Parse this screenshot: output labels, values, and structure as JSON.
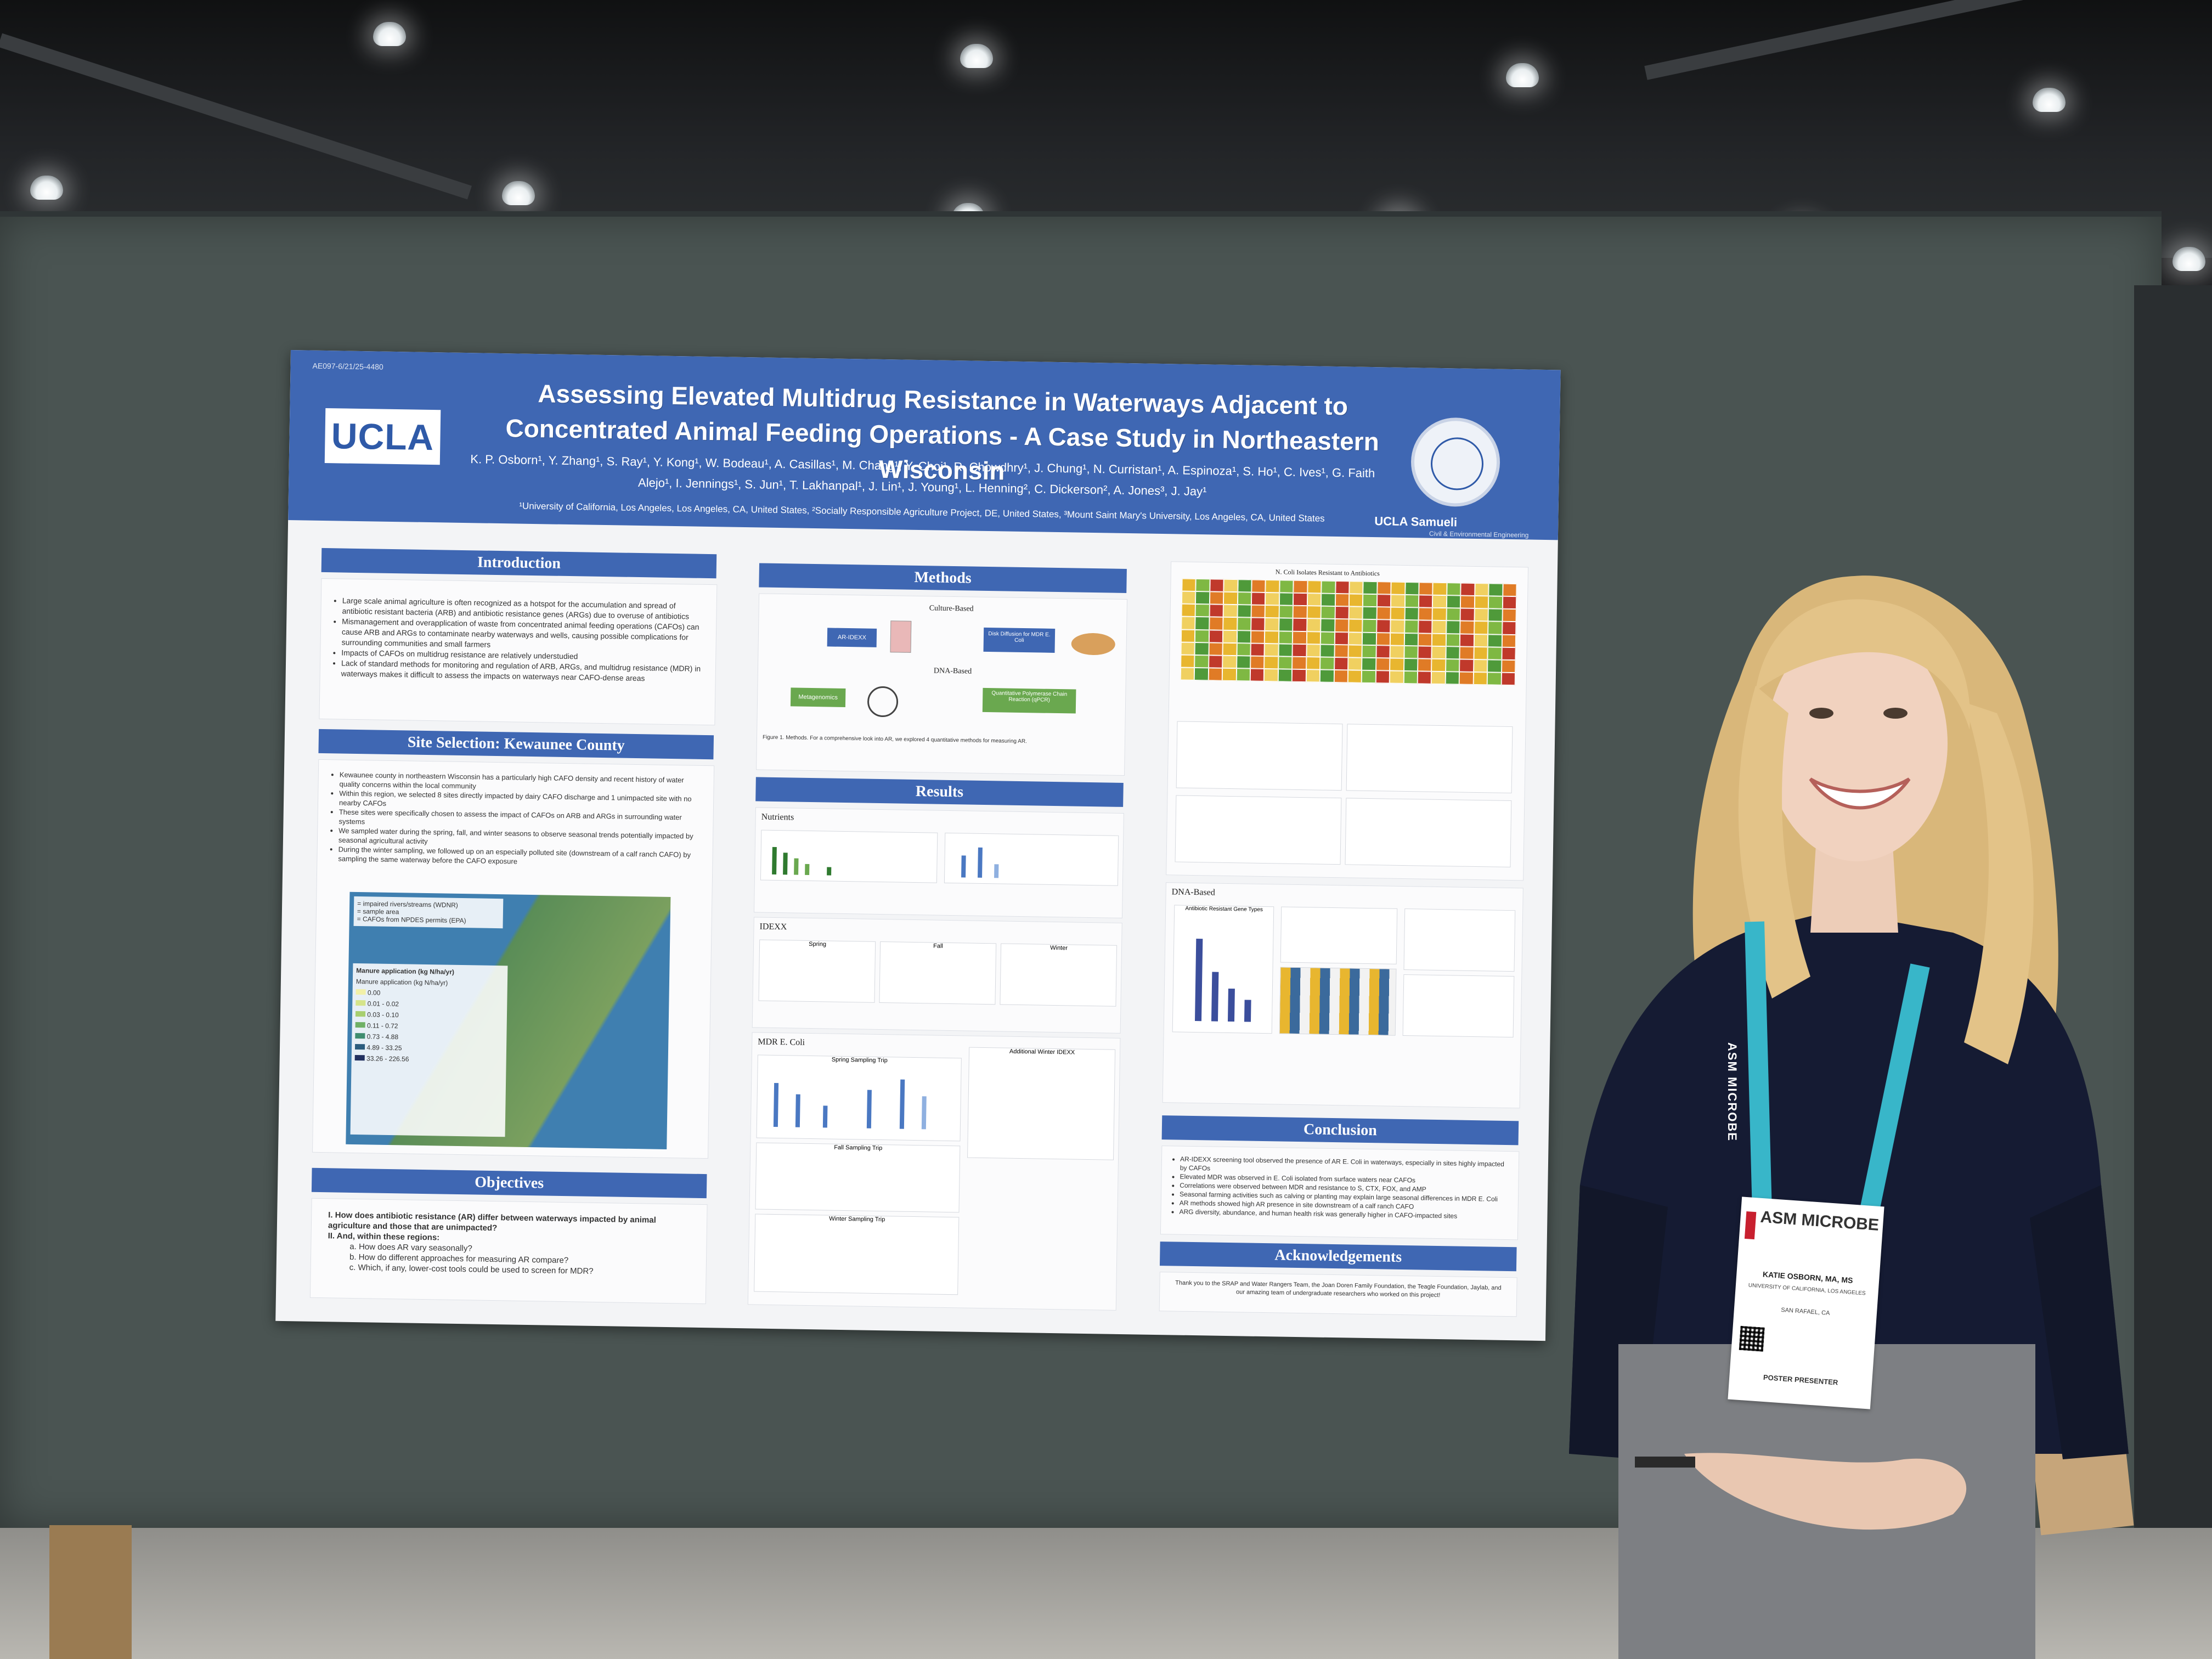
{
  "poster": {
    "id": "AE097-6/21/25-4480",
    "logo": "UCLA",
    "title": "Assessing Elevated Multidrug Resistance in Waterways Adjacent to Concentrated Animal Feeding Operations - A Case Study in Northeastern Wisconsin",
    "authors": "K. P. Osborn¹, Y. Zhang¹, S. Ray¹, Y. Kong¹, W. Bodeau¹, A. Casillas¹, M. Chang¹, Y. Choi¹, R. Chowdhry¹, J. Chung¹, N. Curristan¹, A. Espinoza¹, S. Ho¹, C. Ives¹, G. Faith Alejo¹, I. Jennings¹, S. Jun¹, T. Lakhanpal¹, J. Lin¹, J. Young¹, L. Henning², C. Dickerson², A. Jones³, J. Jay¹",
    "affiliations": "¹University of California, Los Angeles, Los Angeles, CA, United States, ²Socially Responsible Agriculture Project, DE, United States, ³Mount Saint Mary's University, Los Angeles, CA, United States",
    "dept_name": "UCLA Samueli",
    "dept_sub": "Civil & Environmental Engineering",
    "sections": {
      "introduction": {
        "heading": "Introduction",
        "bullets": [
          "Large scale animal agriculture is often recognized as a hotspot for the accumulation and spread of antibiotic resistant bacteria (ARB) and antibiotic resistance genes (ARGs) due to overuse of antibiotics",
          "Mismanagement and overapplication of waste from concentrated animal feeding operations (CAFOs) can cause ARB and ARGs to contaminate nearby waterways and wells, causing possible complications for surrounding communities and small farmers",
          "Impacts of CAFOs on multidrug resistance are relatively understudied",
          "Lack of standard methods for monitoring and regulation of ARB, ARGs, and multidrug resistance (MDR) in waterways makes it difficult to assess the impacts on waterways near CAFO-dense areas"
        ]
      },
      "site_selection": {
        "heading": "Site Selection: Kewaunee County",
        "bullets": [
          "Kewaunee county in northeastern Wisconsin has a particularly high CAFO density and recent history of water quality concerns within the local community",
          "Within this region, we selected 8 sites directly impacted by dairy CAFO discharge and 1 unimpacted site with no nearby CAFOs",
          "These sites were specifically chosen to assess the impact of CAFOs on ARB and ARGs in surrounding water systems",
          "We sampled water during the spring, fall, and winter seasons to observe seasonal trends potentially impacted by seasonal agricultural activity",
          "During the winter sampling, we followed up on an especially polluted site (downstream of a calf ranch CAFO) by sampling the same waterway before the CAFO exposure"
        ],
        "map_legend": [
          "= impaired rivers/streams (WDNR)",
          "= sample area",
          "= CAFOs from NPDES permits (EPA)"
        ],
        "manure_title": "Manure application (kg N/ha/yr)",
        "manure_sub": "Manure application (kg N/ha/yr)",
        "manure_bins": [
          "0.00",
          "0.01 - 0.02",
          "0.03 - 0.10",
          "0.11 - 0.72",
          "0.73 - 4.88",
          "4.89 - 33.25",
          "33.26 - 226.56"
        ]
      },
      "objectives": {
        "heading": "Objectives",
        "items": [
          "I.   How does antibiotic resistance (AR) differ between waterways impacted by animal agriculture and those that are unimpacted?",
          "II.  And, within these regions:",
          "a.  How does AR vary seasonally?",
          "b.  How do different approaches for measuring AR compare?",
          "c.  Which, if any, lower-cost tools could be used to screen for MDR?"
        ]
      },
      "methods": {
        "heading": "Methods",
        "culture_based": "Culture-Based",
        "dna_based": "DNA-Based",
        "boxes": [
          "AR-IDEXX",
          "Disk Diffusion for MDR E. Coli",
          "Metagenomics",
          "Quantitative Polymerase Chain Reaction (qPCR)"
        ],
        "caption": "Figure 1. Methods. For a comprehensive look into AR, we explored 4 quantitative methods for measuring AR."
      },
      "results": {
        "heading": "Results",
        "nutrients": "Nutrients",
        "idexx": "IDEXX",
        "idexx_panels": [
          "Spring",
          "Fall",
          "Winter"
        ],
        "mdr": "MDR E. Coli",
        "mdr_trips": [
          "Spring Sampling Trip",
          "Fall Sampling Trip",
          "Winter Sampling Trip"
        ],
        "additional": "Additional Winter IDEXX",
        "heat_title": "N. Coli Isolates Resistant to Antibiotics",
        "dna": "DNA-Based",
        "dna_chart": "Antibiotic Resistant Gene Types"
      },
      "conclusion": {
        "heading": "Conclusion",
        "bullets": [
          "AR-IDEXX screening tool observed the presence of AR E. Coli in waterways, especially in sites highly impacted by CAFOs",
          "Elevated MDR was observed in E. Coli isolated from surface waters near CAFOs",
          "Correlations were observed between MDR and resistance to S, CTX, FOX, and AMP",
          "Seasonal farming activities such as calving or planting may explain large seasonal differences in MDR E. Coli",
          "AR methods showed high AR presence in site downstream of a calf ranch CAFO",
          "ARG diversity, abundance, and human health risk was generally higher in CAFO-impacted sites"
        ]
      },
      "acknowledgements": {
        "heading": "Acknowledgements",
        "text": "Thank you to the SRAP and Water Rangers Team, the Joan Doren Family Foundation, the Teagle Foundation, Jaylab, and our amazing team of undergraduate researchers who worked on this project!"
      }
    }
  },
  "badge": {
    "brand": "ASM MICROBE",
    "name": "KATIE OSBORN, MA, MS",
    "org": "UNIVERSITY OF CALIFORNIA, LOS ANGELES",
    "city": "SAN RAFAEL, CA",
    "role": "POSTER PRESENTER"
  },
  "lanyard": {
    "text": "ASM MICROBE"
  },
  "colors": {
    "poster_blue": "#3f67b3",
    "board": "#4a5452",
    "lanyard": "#38b6c9",
    "shirt": "#151b33"
  }
}
